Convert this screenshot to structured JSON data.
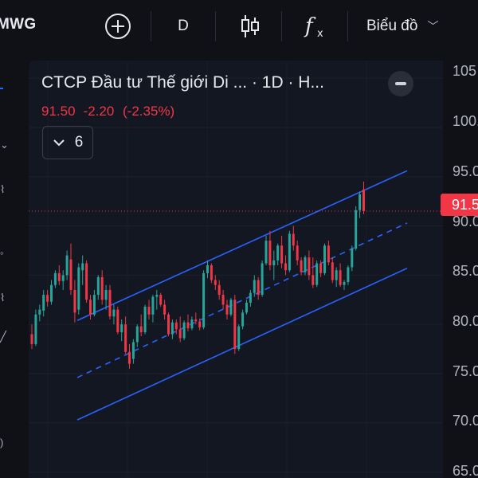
{
  "toolbar": {
    "symbol": "MWG",
    "add_icon": "plus-circle-icon",
    "interval": "D",
    "chart_type_icon": "candlestick-icon",
    "indicators_icon": "fx-icon",
    "chart_menu": "Biểu đồ"
  },
  "legend": {
    "title": "CTCP Đầu tư Thế giới Di ... · 1D · H...",
    "last": "91.50",
    "change": "-2.20",
    "change_pct": "(-2.35%)",
    "indicator_count": "6"
  },
  "price_scale": {
    "labels": [
      "105",
      "100.",
      "95.0",
      "90.0",
      "85.0",
      "80.0",
      "75.0",
      "70.0",
      "65.0"
    ],
    "current": "91.5"
  },
  "colors": {
    "up": "#26a69a",
    "down": "#f23645",
    "channel": "#2962ff",
    "background": "#131722"
  },
  "chart_data": {
    "type": "candlestick",
    "last_price": 91.5,
    "ylim": [
      64.4,
      107.6
    ],
    "candles": [
      [
        79,
        80,
        77.5,
        78
      ],
      [
        78,
        81.5,
        77.8,
        81
      ],
      [
        81,
        82,
        80.3,
        81.5
      ],
      [
        81.4,
        83.5,
        80.8,
        83
      ],
      [
        83,
        83.5,
        81.8,
        82.3
      ],
      [
        82.3,
        84.5,
        82,
        84
      ],
      [
        84,
        85.5,
        83.7,
        85.2
      ],
      [
        85.2,
        86,
        84,
        84.4
      ],
      [
        84.4,
        85.5,
        83.5,
        85
      ],
      [
        85,
        87.5,
        84.5,
        87
      ],
      [
        86.6,
        88.2,
        83,
        83.5
      ],
      [
        83.5,
        84.5,
        80.2,
        81.2
      ],
      [
        81.5,
        86.2,
        81,
        85.8
      ],
      [
        85.5,
        87,
        84,
        86.2
      ],
      [
        86.2,
        86.5,
        82.2,
        82.5
      ],
      [
        82.5,
        83,
        80.5,
        81
      ],
      [
        81,
        83.5,
        80.8,
        83
      ],
      [
        83,
        85,
        82.5,
        84.8
      ],
      [
        84.8,
        85.5,
        82,
        82.5
      ],
      [
        82.5,
        84,
        81.5,
        83.5
      ],
      [
        83.5,
        84,
        80.5,
        80.8
      ],
      [
        80.8,
        82,
        80,
        81.5
      ],
      [
        81.5,
        81.8,
        79,
        79.2
      ],
      [
        79.2,
        80.5,
        78.3,
        80
      ],
      [
        80,
        80.8,
        77,
        77.2
      ],
      [
        77.2,
        78,
        75.5,
        76
      ],
      [
        76.5,
        78.5,
        76,
        78.2
      ],
      [
        78.2,
        80,
        77.7,
        79.8
      ],
      [
        79.8,
        81,
        78.8,
        79.2
      ],
      [
        79.2,
        82,
        79,
        81.8
      ],
      [
        81.8,
        82.5,
        80.5,
        81
      ],
      [
        81,
        83,
        80.2,
        82.8
      ],
      [
        82.8,
        83.5,
        81.5,
        83
      ],
      [
        83,
        83.2,
        81.8,
        82
      ],
      [
        82,
        82.5,
        80.5,
        81
      ],
      [
        81,
        81.2,
        78.8,
        79
      ],
      [
        79,
        80.5,
        78.5,
        80.2
      ],
      [
        80.2,
        80.5,
        79,
        79.5
      ],
      [
        79.5,
        80.8,
        78.2,
        78.6
      ],
      [
        78.6,
        80.4,
        78.4,
        80.2
      ],
      [
        80.2,
        81,
        79.3,
        79.6
      ],
      [
        79.6,
        80.8,
        79.4,
        80.5
      ],
      [
        80.5,
        81.2,
        80,
        80.3
      ],
      [
        80.3,
        80.6,
        79.4,
        79.7
      ],
      [
        79.7,
        85.5,
        79.5,
        85.2
      ],
      [
        85.2,
        86.5,
        84.7,
        86
      ],
      [
        86,
        86.2,
        84.2,
        84.5
      ],
      [
        84.5,
        85,
        83.5,
        84
      ],
      [
        84,
        84.5,
        82.5,
        83
      ],
      [
        83,
        83.5,
        81.5,
        82
      ],
      [
        82,
        82.5,
        80.5,
        81
      ],
      [
        81,
        82.7,
        80.8,
        82.5
      ],
      [
        82.5,
        83,
        77,
        77.5
      ],
      [
        77.5,
        80,
        77.3,
        79.8
      ],
      [
        79.8,
        81.5,
        79.5,
        81.2
      ],
      [
        81.2,
        82.5,
        81,
        82.2
      ],
      [
        82.2,
        83.5,
        81.8,
        83.2
      ],
      [
        83.2,
        85,
        82.8,
        84.5
      ],
      [
        84.5,
        84.8,
        82.5,
        83
      ],
      [
        83,
        86.5,
        82.8,
        86.2
      ],
      [
        86.2,
        89,
        86,
        88.5
      ],
      [
        88.5,
        89.5,
        85.5,
        86
      ],
      [
        86,
        87.5,
        84.5,
        86.5
      ],
      [
        86.5,
        88.2,
        86,
        88
      ],
      [
        88,
        89,
        85.7,
        86.2
      ],
      [
        86.2,
        87,
        85,
        85.5
      ],
      [
        85.5,
        89.5,
        85.3,
        89.2
      ],
      [
        89.2,
        90,
        87.5,
        88
      ],
      [
        88,
        88.5,
        86,
        86.5
      ],
      [
        86.5,
        86.8,
        85,
        85.3
      ],
      [
        85.3,
        87,
        85,
        86.8
      ],
      [
        86.8,
        87.5,
        84.5,
        85
      ],
      [
        85,
        86.8,
        83.7,
        84
      ],
      [
        84,
        86.5,
        83.8,
        86.2
      ],
      [
        86.2,
        86.5,
        84.8,
        85.2
      ],
      [
        85.2,
        88.2,
        85,
        88
      ],
      [
        88,
        88.5,
        86,
        86.3
      ],
      [
        86.3,
        86.8,
        84.2,
        84.5
      ],
      [
        84.5,
        85.8,
        83.8,
        85.5
      ],
      [
        85.5,
        86.2,
        83.8,
        84
      ],
      [
        84,
        84.5,
        83.5,
        84.3
      ],
      [
        84.3,
        86,
        84,
        85.8
      ],
      [
        85.8,
        88,
        85.4,
        87.7
      ],
      [
        87.7,
        92,
        87.5,
        91.6
      ],
      [
        91.6,
        93.5,
        90.8,
        93.2
      ],
      [
        93.7,
        94.5,
        91.2,
        91.5
      ]
    ],
    "channel": {
      "upper": [
        [
          97,
          80.4
        ],
        [
          511,
          95.6
        ]
      ],
      "middle": [
        [
          97,
          74.6
        ],
        [
          511,
          90.3
        ]
      ],
      "lower": [
        [
          97,
          70.3
        ],
        [
          511,
          85.7
        ]
      ]
    }
  }
}
